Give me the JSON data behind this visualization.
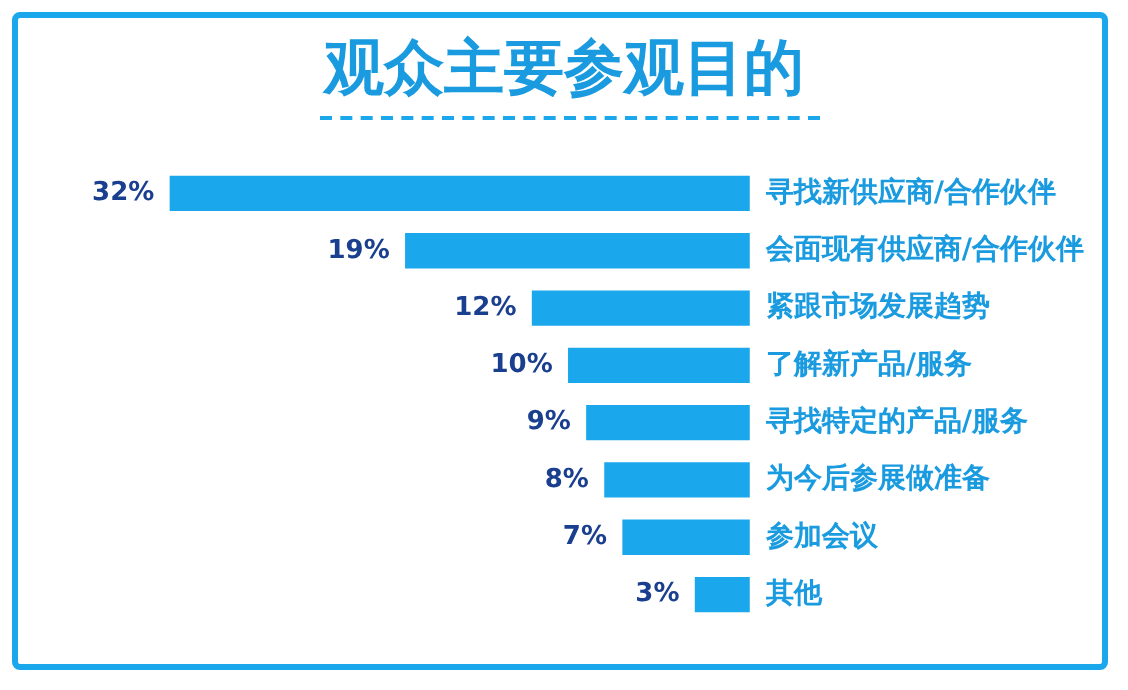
{
  "chart_data": {
    "type": "bar",
    "orientation": "horizontal",
    "title": "观众主要参观目的",
    "categories": [
      "寻找新供应商/合作伙伴",
      "会面现有供应商/合作伙伴",
      "紧跟市场发展趋势",
      "了解新产品/服务",
      "寻找特定的产品/服务",
      "为今后参展做准备",
      "参加会议",
      "其他"
    ],
    "values": [
      32,
      19,
      12,
      10,
      9,
      8,
      7,
      3
    ],
    "value_labels": [
      "32%",
      "19%",
      "12%",
      "10%",
      "9%",
      "8%",
      "7%",
      "3%"
    ],
    "color": "#1aa7ec",
    "grid": false,
    "legend": false
  }
}
